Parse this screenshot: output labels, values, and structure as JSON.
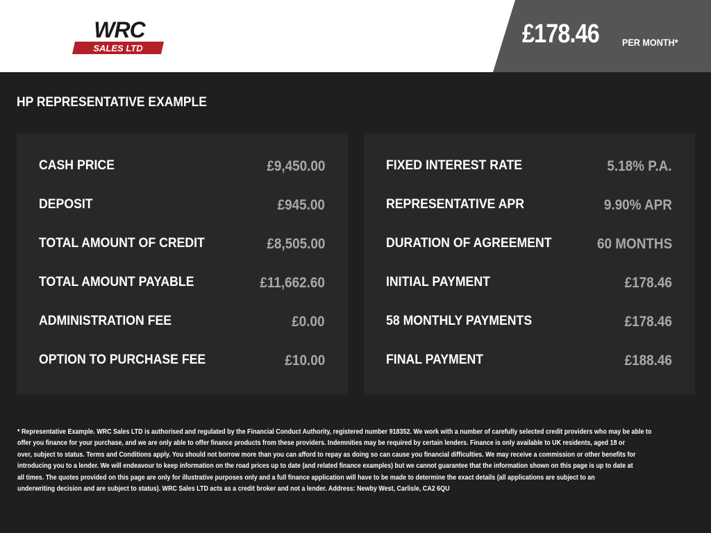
{
  "header": {
    "logo_text": "WRC SALES LTD",
    "monthly_price": "£178.46",
    "per_month": "PER MONTH*"
  },
  "title": "HP REPRESENTATIVE EXAMPLE",
  "left": [
    {
      "label": "CASH PRICE",
      "value": "£9,450.00"
    },
    {
      "label": "DEPOSIT",
      "value": "£945.00"
    },
    {
      "label": "TOTAL AMOUNT OF CREDIT",
      "value": "£8,505.00"
    },
    {
      "label": "TOTAL AMOUNT PAYABLE",
      "value": "£11,662.60"
    },
    {
      "label": "ADMINISTRATION FEE",
      "value": "£0.00"
    },
    {
      "label": "OPTION TO PURCHASE FEE",
      "value": "£10.00"
    }
  ],
  "right": [
    {
      "label": "FIXED INTEREST RATE",
      "value": "5.18% P.A."
    },
    {
      "label": "REPRESENTATIVE APR",
      "value": "9.90% APR"
    },
    {
      "label": "DURATION OF AGREEMENT",
      "value": "60 MONTHS"
    },
    {
      "label": "INITIAL PAYMENT",
      "value": "£178.46"
    },
    {
      "label": "58 MONTHLY PAYMENTS",
      "value": "£178.46"
    },
    {
      "label": "FINAL PAYMENT",
      "value": "£188.46"
    }
  ],
  "disclaimer": [
    "* Representative Example. WRC Sales LTD is authorised and regulated by the Financial Conduct Authority, registered number 918352. We work with a number of carefully selected credit providers who may be able to",
    "offer you finance for your purchase, and we are only able to offer finance products from these providers. Indemnities may be required by certain lenders. Finance is only available to UK residents, aged 18 or",
    "over, subject to status. Terms and Conditions apply. You should not borrow more than you can afford to repay as doing so can cause you financial difficulties. We may receive a commission or other benefits for",
    "introducing you to a lender. We will endeavour to keep information on the road prices up to date (and related finance examples) but we cannot guarantee that the information shown on this page is up to date at",
    "all times. The quotes provided on this page are only for illustrative purposes only and a full finance application will have to be made to determine the exact details (all applications are subject to an",
    "underwriting decision and are subject to status). WRC Sales LTD acts as a credit broker and not a lender. Address: Newby West, Carlisle, CA2 6QU"
  ]
}
